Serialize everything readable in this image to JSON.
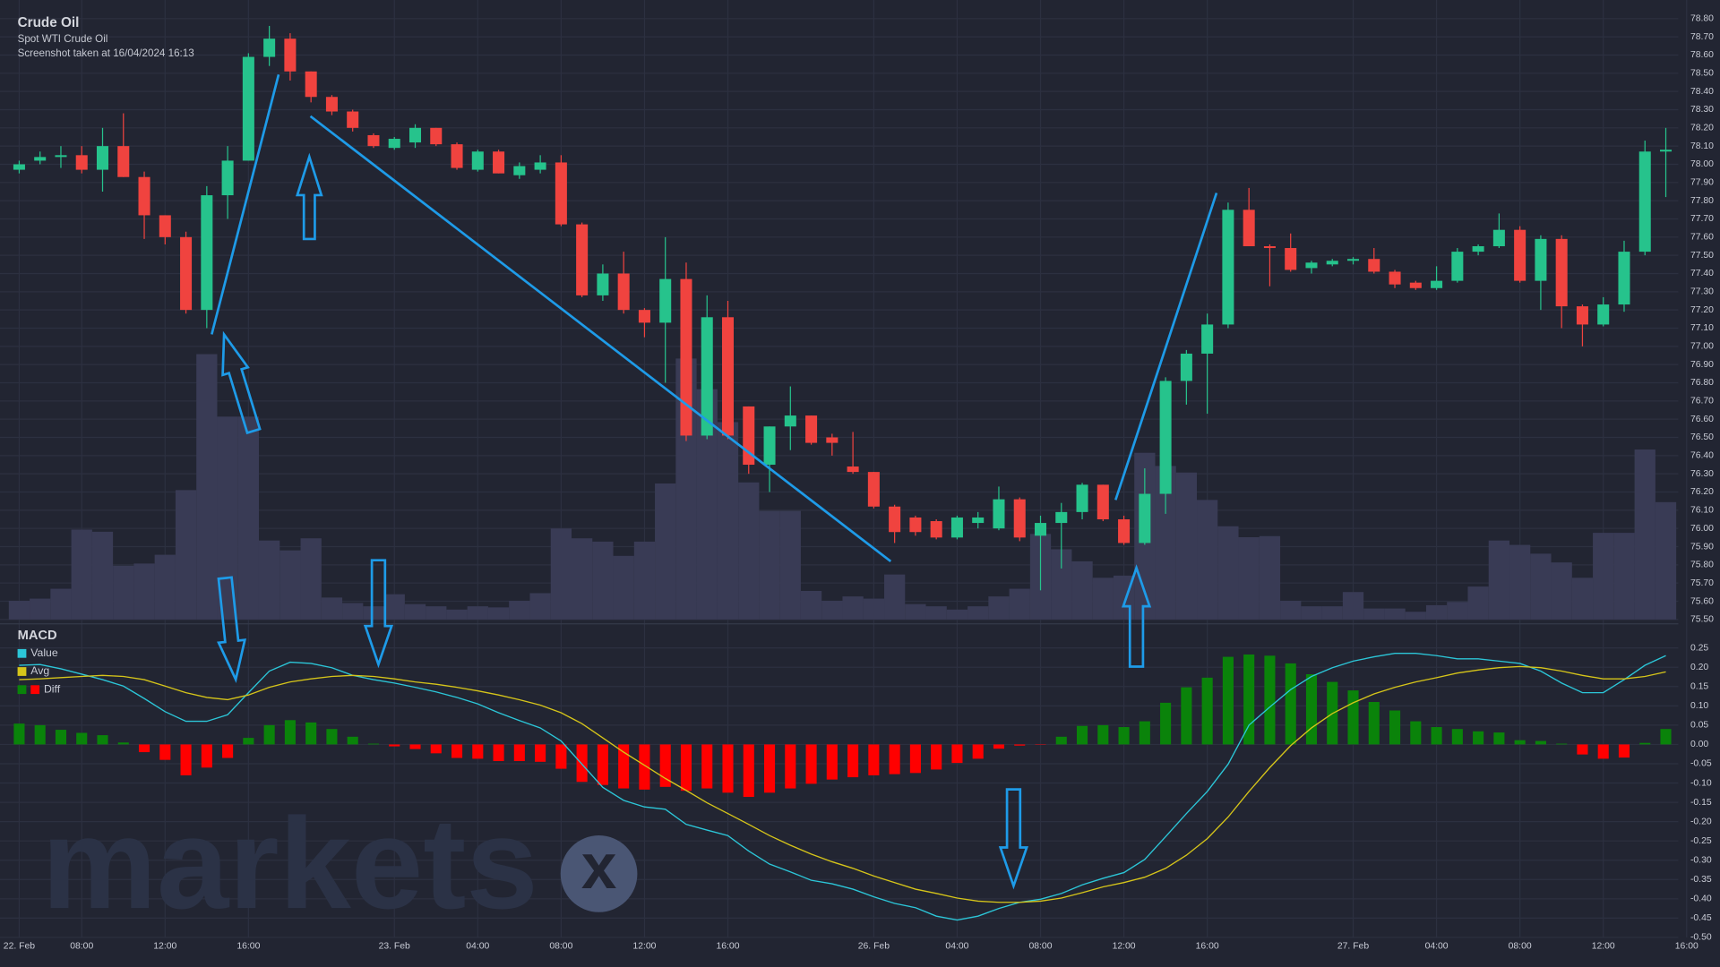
{
  "chart_data": [
    {
      "type": "candlestick",
      "title": "Crude Oil",
      "subtitle": "Spot WTI Crude Oil",
      "note": "Screenshot taken at 16/04/2024 16:13",
      "up_color": "#26c38c",
      "down_color": "#f0433f",
      "volume_color": "#393b55",
      "xlim": [
        -0.5,
        79.6
      ],
      "xticks": [
        {
          "value": 0,
          "label": "22. Feb"
        },
        {
          "value": 3,
          "label": "08:00"
        },
        {
          "value": 7,
          "label": "12:00"
        },
        {
          "value": 11,
          "label": "16:00"
        },
        {
          "value": 18,
          "label": "23. Feb"
        },
        {
          "value": 22,
          "label": "04:00"
        },
        {
          "value": 26,
          "label": "08:00"
        },
        {
          "value": 30,
          "label": "12:00"
        },
        {
          "value": 34,
          "label": "16:00"
        },
        {
          "value": 41,
          "label": "26. Feb"
        },
        {
          "value": 45,
          "label": "04:00"
        },
        {
          "value": 49,
          "label": "08:00"
        },
        {
          "value": 53,
          "label": "12:00"
        },
        {
          "value": 57,
          "label": "16:00"
        },
        {
          "value": 64,
          "label": "27. Feb"
        },
        {
          "value": 68,
          "label": "04:00"
        },
        {
          "value": 72,
          "label": "08:00"
        },
        {
          "value": 76,
          "label": "12:00"
        },
        {
          "value": 80,
          "label": "16:00"
        }
      ],
      "ylim": [
        75.5,
        78.8
      ],
      "yticks": [
        {
          "value": 75.5,
          "label": "75.50"
        },
        {
          "value": 75.6,
          "label": "75.60"
        },
        {
          "value": 75.7,
          "label": "75.70"
        },
        {
          "value": 75.8,
          "label": "75.80"
        },
        {
          "value": 75.9,
          "label": "75.90"
        },
        {
          "value": 76.0,
          "label": "76.00"
        },
        {
          "value": 76.1,
          "label": "76.10"
        },
        {
          "value": 76.2,
          "label": "76.20"
        },
        {
          "value": 76.3,
          "label": "76.30"
        },
        {
          "value": 76.4,
          "label": "76.40"
        },
        {
          "value": 76.5,
          "label": "76.50"
        },
        {
          "value": 76.6,
          "label": "76.60"
        },
        {
          "value": 76.7,
          "label": "76.70"
        },
        {
          "value": 76.8,
          "label": "76.80"
        },
        {
          "value": 76.9,
          "label": "76.90"
        },
        {
          "value": 77.0,
          "label": "77.00"
        },
        {
          "value": 77.1,
          "label": "77.10"
        },
        {
          "value": 77.2,
          "label": "77.20"
        },
        {
          "value": 77.3,
          "label": "77.30"
        },
        {
          "value": 77.4,
          "label": "77.40"
        },
        {
          "value": 77.5,
          "label": "77.50"
        },
        {
          "value": 77.6,
          "label": "77.60"
        },
        {
          "value": 77.7,
          "label": "77.70"
        },
        {
          "value": 77.8,
          "label": "77.80"
        },
        {
          "value": 77.9,
          "label": "77.90"
        },
        {
          "value": 78.0,
          "label": "78.00"
        },
        {
          "value": 78.1,
          "label": "78.10"
        },
        {
          "value": 78.2,
          "label": "78.20"
        },
        {
          "value": 78.3,
          "label": "78.30"
        },
        {
          "value": 78.4,
          "label": "78.40"
        },
        {
          "value": 78.5,
          "label": "78.50"
        },
        {
          "value": 78.6,
          "label": "78.60"
        },
        {
          "value": 78.7,
          "label": "78.70"
        },
        {
          "value": 78.8,
          "label": "78.80"
        }
      ],
      "open": [
        77.97,
        78.02,
        78.04,
        78.05,
        77.97,
        78.1,
        77.93,
        77.72,
        77.6,
        77.2,
        77.83,
        78.02,
        78.59,
        78.69,
        78.51,
        78.37,
        78.29,
        78.16,
        78.09,
        78.12,
        78.2,
        78.11,
        77.97,
        78.07,
        77.94,
        77.97,
        78.01,
        77.67,
        77.28,
        77.4,
        77.2,
        77.13,
        77.37,
        76.51,
        77.16,
        76.67,
        76.35,
        76.56,
        76.62,
        76.5,
        76.34,
        76.31,
        76.12,
        76.06,
        76.04,
        75.95,
        76.03,
        76.0,
        76.16,
        75.96,
        76.03,
        76.09,
        76.24,
        76.05,
        75.92,
        76.19,
        76.81,
        76.96,
        77.12,
        77.75,
        77.55,
        77.54,
        77.43,
        77.45,
        77.47,
        77.48,
        77.41,
        77.35,
        77.32,
        77.36,
        77.52,
        77.55,
        77.64,
        77.36,
        77.59,
        77.22,
        77.12,
        77.23,
        77.52,
        78.07
      ],
      "high": [
        78.02,
        78.07,
        78.1,
        78.1,
        78.2,
        78.28,
        77.96,
        77.72,
        77.63,
        77.88,
        78.1,
        78.61,
        78.76,
        78.72,
        78.51,
        78.38,
        78.3,
        78.17,
        78.15,
        78.22,
        78.2,
        78.12,
        78.08,
        78.08,
        78.01,
        78.05,
        78.05,
        77.68,
        77.45,
        77.52,
        77.21,
        77.6,
        77.46,
        77.28,
        77.25,
        76.67,
        76.56,
        76.78,
        76.62,
        76.52,
        76.53,
        76.31,
        76.13,
        76.07,
        76.05,
        76.07,
        76.09,
        76.23,
        76.17,
        76.07,
        76.14,
        76.25,
        76.24,
        76.07,
        76.33,
        76.83,
        76.98,
        77.18,
        77.79,
        77.87,
        77.56,
        77.62,
        77.47,
        77.48,
        77.49,
        77.54,
        77.42,
        77.36,
        77.44,
        77.54,
        77.56,
        77.73,
        77.66,
        77.61,
        77.61,
        77.23,
        77.27,
        77.58,
        78.13,
        78.2
      ],
      "low": [
        77.95,
        78.0,
        77.98,
        77.95,
        77.85,
        77.93,
        77.59,
        77.56,
        77.18,
        77.1,
        77.7,
        78.02,
        78.54,
        78.46,
        78.34,
        78.27,
        78.18,
        78.09,
        78.08,
        78.09,
        78.1,
        77.97,
        77.96,
        77.95,
        77.92,
        77.95,
        77.66,
        77.27,
        77.25,
        77.18,
        77.05,
        76.8,
        76.48,
        76.49,
        76.49,
        76.3,
        76.2,
        76.43,
        76.46,
        76.4,
        76.3,
        76.11,
        75.92,
        75.96,
        75.94,
        75.94,
        76.0,
        75.99,
        75.93,
        75.66,
        75.78,
        76.05,
        76.04,
        75.91,
        75.91,
        76.08,
        76.68,
        76.63,
        77.1,
        77.55,
        77.33,
        77.41,
        77.4,
        77.44,
        77.45,
        77.4,
        77.32,
        77.31,
        77.31,
        77.35,
        77.5,
        77.54,
        77.35,
        77.2,
        77.1,
        77.0,
        77.11,
        77.19,
        77.5,
        77.82
      ],
      "close": [
        78.0,
        78.04,
        78.05,
        77.97,
        78.1,
        77.93,
        77.72,
        77.6,
        77.2,
        77.83,
        78.02,
        78.59,
        78.69,
        78.51,
        78.37,
        78.29,
        78.2,
        78.1,
        78.14,
        78.2,
        78.11,
        77.98,
        78.07,
        77.95,
        77.99,
        78.01,
        77.67,
        77.28,
        77.4,
        77.2,
        77.13,
        77.37,
        76.51,
        77.16,
        76.51,
        76.35,
        76.56,
        76.62,
        76.47,
        76.47,
        76.31,
        76.12,
        75.98,
        75.98,
        75.95,
        76.06,
        76.06,
        76.16,
        75.95,
        76.03,
        76.09,
        76.24,
        76.05,
        75.92,
        76.19,
        76.81,
        76.96,
        77.12,
        77.75,
        77.55,
        77.54,
        77.42,
        77.46,
        77.47,
        77.48,
        77.41,
        77.34,
        77.32,
        77.36,
        77.52,
        77.55,
        77.64,
        77.36,
        77.59,
        77.22,
        77.12,
        77.23,
        77.52,
        78.07,
        78.08
      ],
      "volume": [
        17,
        19,
        28,
        82,
        80,
        49,
        51,
        59,
        118,
        242,
        185,
        185,
        72,
        63,
        74,
        20,
        15,
        12,
        23,
        14,
        12,
        9,
        12,
        11,
        17,
        24,
        83,
        74,
        71,
        58,
        71,
        124,
        238,
        210,
        180,
        125,
        99,
        99,
        26,
        17,
        21,
        19,
        41,
        14,
        12,
        9,
        12,
        21,
        28,
        78,
        64,
        53,
        38,
        40,
        152,
        140,
        134,
        109,
        85,
        75,
        76,
        17,
        12,
        12,
        25,
        10,
        10,
        7,
        13,
        16,
        30,
        72,
        68,
        60,
        52,
        38,
        79,
        79,
        155,
        107
      ]
    },
    {
      "type": "macd",
      "title": "MACD",
      "watermark": "markets",
      "watermark_mark": "x",
      "ylim": [
        -0.5,
        0.25
      ],
      "yticks": [
        0.25,
        {
          "value": 0.2,
          "label": "0.20"
        },
        0.15,
        {
          "value": 0.1,
          "label": "0.10"
        },
        0.05,
        {
          "value": 0,
          "label": "0.00"
        },
        -0.05,
        {
          "value": -0.1,
          "label": "-0.10"
        },
        -0.15,
        {
          "value": -0.2,
          "label": "-0.20"
        },
        -0.25,
        {
          "value": -0.3,
          "label": "-0.30"
        },
        -0.35,
        {
          "value": -0.4,
          "label": "-0.40"
        },
        -0.45,
        {
          "value": -0.5,
          "label": "-0.50"
        }
      ],
      "series": [
        {
          "name": "Value",
          "color": "#2cc6d8",
          "values": [
            0.205,
            0.207,
            0.196,
            0.182,
            0.168,
            0.151,
            0.119,
            0.085,
            0.06,
            0.06,
            0.077,
            0.134,
            0.19,
            0.213,
            0.21,
            0.199,
            0.179,
            0.168,
            0.159,
            0.148,
            0.136,
            0.122,
            0.105,
            0.082,
            0.062,
            0.043,
            0.009,
            -0.051,
            -0.111,
            -0.145,
            -0.162,
            -0.168,
            -0.207,
            -0.222,
            -0.236,
            -0.276,
            -0.31,
            -0.33,
            -0.352,
            -0.361,
            -0.375,
            -0.395,
            -0.412,
            -0.423,
            -0.445,
            -0.455,
            -0.445,
            -0.425,
            -0.409,
            -0.401,
            -0.386,
            -0.364,
            -0.347,
            -0.332,
            -0.298,
            -0.239,
            -0.179,
            -0.122,
            -0.051,
            0.05,
            0.097,
            0.142,
            0.176,
            0.199,
            0.216,
            0.227,
            0.236,
            0.236,
            0.23,
            0.222,
            0.222,
            0.216,
            0.21,
            0.19,
            0.159,
            0.134,
            0.134,
            0.168,
            0.205,
            0.23
          ]
        },
        {
          "name": "Avg",
          "color": "#d6c51a",
          "values": [
            0.168,
            0.17,
            0.173,
            0.176,
            0.179,
            0.176,
            0.168,
            0.151,
            0.134,
            0.122,
            0.116,
            0.128,
            0.148,
            0.162,
            0.17,
            0.176,
            0.179,
            0.176,
            0.17,
            0.162,
            0.156,
            0.148,
            0.139,
            0.128,
            0.116,
            0.102,
            0.082,
            0.054,
            0.017,
            -0.02,
            -0.054,
            -0.088,
            -0.119,
            -0.151,
            -0.179,
            -0.207,
            -0.236,
            -0.261,
            -0.284,
            -0.304,
            -0.321,
            -0.341,
            -0.358,
            -0.375,
            -0.386,
            -0.398,
            -0.406,
            -0.409,
            -0.409,
            -0.406,
            -0.398,
            -0.384,
            -0.369,
            -0.358,
            -0.344,
            -0.321,
            -0.287,
            -0.244,
            -0.188,
            -0.122,
            -0.06,
            -0.003,
            0.043,
            0.08,
            0.108,
            0.131,
            0.148,
            0.162,
            0.173,
            0.185,
            0.193,
            0.199,
            0.202,
            0.199,
            0.19,
            0.179,
            0.17,
            0.17,
            0.176,
            0.188
          ]
        },
        {
          "name": "Diff",
          "color": "#0a830a",
          "negative_color": "#ff0000",
          "values": [
            0.054,
            0.05,
            0.038,
            0.03,
            0.024,
            0.005,
            -0.02,
            -0.04,
            -0.08,
            -0.06,
            -0.035,
            0.017,
            0.05,
            0.063,
            0.057,
            0.04,
            0.02,
            0.002,
            -0.005,
            -0.012,
            -0.023,
            -0.035,
            -0.037,
            -0.043,
            -0.043,
            -0.045,
            -0.063,
            -0.097,
            -0.105,
            -0.114,
            -0.117,
            -0.11,
            -0.12,
            -0.114,
            -0.125,
            -0.136,
            -0.125,
            -0.114,
            -0.102,
            -0.091,
            -0.085,
            -0.08,
            -0.077,
            -0.074,
            -0.065,
            -0.048,
            -0.037,
            -0.011,
            -0.003,
            -0.001,
            0.02,
            0.048,
            0.05,
            0.045,
            0.06,
            0.108,
            0.148,
            0.173,
            0.227,
            0.233,
            0.23,
            0.21,
            0.182,
            0.162,
            0.14,
            0.11,
            0.088,
            0.06,
            0.045,
            0.04,
            0.034,
            0.031,
            0.011,
            0.009,
            0.002,
            -0.026,
            -0.037,
            -0.034,
            0.004,
            0.04
          ]
        }
      ]
    }
  ]
}
